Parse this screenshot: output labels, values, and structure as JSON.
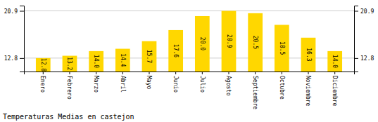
{
  "chart_data": {
    "type": "bar",
    "title": "Temperaturas Medias en castejon",
    "categories": [
      "Enero",
      "Febrero",
      "Marzo",
      "Abril",
      "Mayo",
      "Junio",
      "Julio",
      "Agosto",
      "Septiembre",
      "Octubre",
      "Noviembre",
      "Diciembre"
    ],
    "values": [
      12.8,
      13.2,
      14.0,
      14.4,
      15.7,
      17.6,
      20.0,
      20.9,
      20.5,
      18.5,
      16.3,
      14.0
    ],
    "value_labels": [
      "12.8",
      "13.2",
      "14.0",
      "14.4",
      "15.7",
      "17.6",
      "20.0",
      "20.9",
      "20.5",
      "18.5",
      "16.3",
      "14.0"
    ],
    "data_labels": true,
    "color": "#FFD700",
    "ylim": [
      10.5,
      21.8
    ],
    "yticks": [
      12.8,
      20.9
    ],
    "y2lim": [
      10.5,
      21.8
    ],
    "y2ticks": [
      12.8,
      20.9
    ],
    "grid": true
  }
}
